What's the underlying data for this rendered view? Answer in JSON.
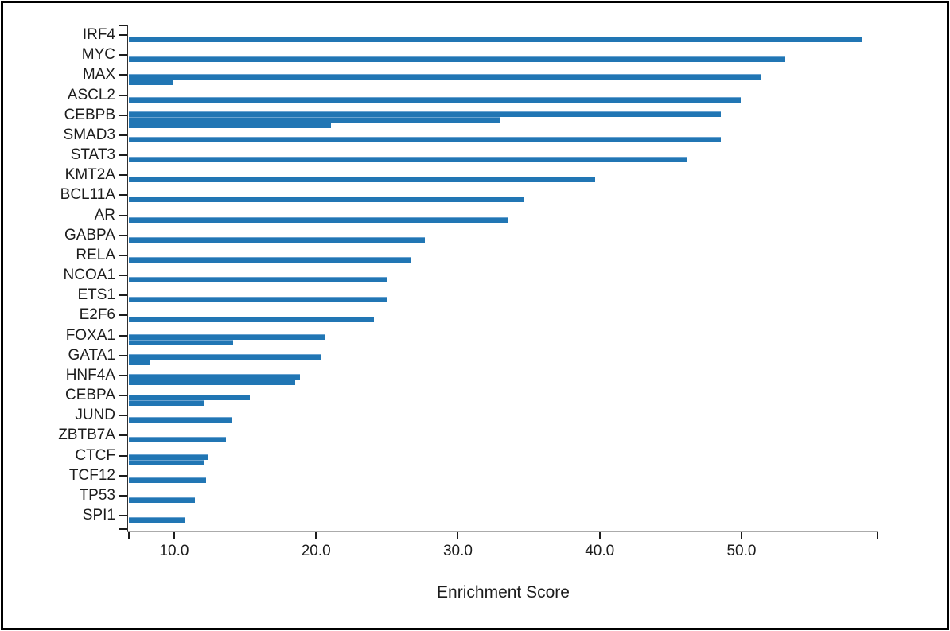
{
  "chart_data": {
    "type": "bar",
    "orientation": "horizontal",
    "title": "",
    "xlabel": "Enrichment Score",
    "ylabel": "",
    "xlim": [
      6.75,
      59.65
    ],
    "x_ticks": [
      10,
      20,
      30,
      40,
      50
    ],
    "x_tick_labels": [
      "10.0",
      "20.0",
      "30.0",
      "40.0",
      "50.0"
    ],
    "grid": false,
    "legend": "none",
    "bar_color": "#2176b4",
    "rows": [
      {
        "label": "IRF4",
        "values": [
          58.4
        ]
      },
      {
        "label": "MYC",
        "values": [
          53.0
        ]
      },
      {
        "label": "MAX",
        "values": [
          51.3,
          9.9
        ]
      },
      {
        "label": "ASCL2",
        "values": [
          49.9
        ]
      },
      {
        "label": "CEBPB",
        "values": [
          48.5,
          32.9,
          21.0
        ]
      },
      {
        "label": "SMAD3",
        "values": [
          48.5
        ]
      },
      {
        "label": "STAT3",
        "values": [
          46.1
        ]
      },
      {
        "label": "KMT2A",
        "values": [
          39.6
        ]
      },
      {
        "label": "BCL11A",
        "values": [
          34.6
        ]
      },
      {
        "label": "AR",
        "values": [
          33.5
        ]
      },
      {
        "label": "GABPA",
        "values": [
          27.6
        ]
      },
      {
        "label": "RELA",
        "values": [
          26.6
        ]
      },
      {
        "label": "NCOA1",
        "values": [
          25.0
        ]
      },
      {
        "label": "ETS1",
        "values": [
          24.9
        ]
      },
      {
        "label": "E2F6",
        "values": [
          24.0
        ]
      },
      {
        "label": "FOXA1",
        "values": [
          20.6,
          14.1
        ]
      },
      {
        "label": "GATA1",
        "values": [
          20.3,
          8.2
        ]
      },
      {
        "label": "HNF4A",
        "values": [
          18.8,
          18.5
        ]
      },
      {
        "label": "CEBPA",
        "values": [
          15.3,
          12.1
        ]
      },
      {
        "label": "JUND",
        "values": [
          14.0
        ]
      },
      {
        "label": "ZBTB7A",
        "values": [
          13.6
        ]
      },
      {
        "label": "CTCF",
        "values": [
          12.3,
          12.0
        ]
      },
      {
        "label": "TCF12",
        "values": [
          12.2
        ]
      },
      {
        "label": "TP53",
        "values": [
          11.4
        ]
      },
      {
        "label": "SPI1",
        "values": [
          10.7
        ]
      }
    ]
  }
}
